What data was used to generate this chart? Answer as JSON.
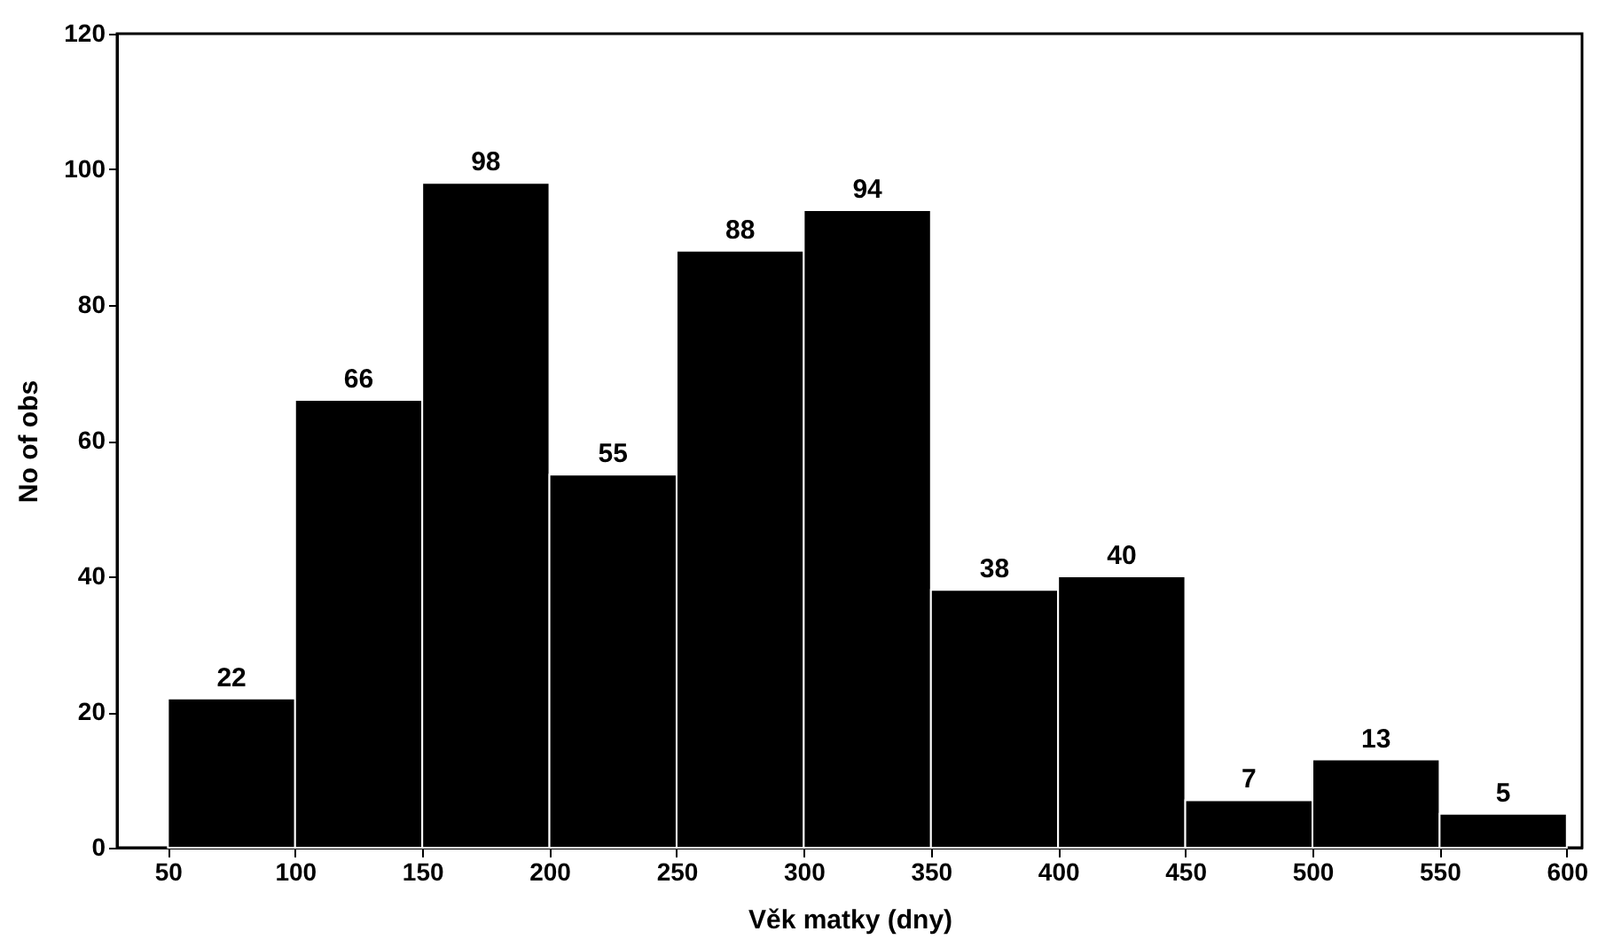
{
  "chart_data": {
    "type": "histogram",
    "xlabel": "Věk matky (dny)",
    "ylabel": "No of obs",
    "bins": [
      50,
      100,
      150,
      200,
      250,
      300,
      350,
      400,
      450,
      500,
      550,
      600
    ],
    "values": [
      22,
      66,
      98,
      55,
      88,
      94,
      38,
      40,
      7,
      13,
      5
    ],
    "color": "#000000",
    "data_labels": true,
    "grid": false,
    "xlim": [
      30,
      606
    ],
    "xticks": [
      50,
      100,
      150,
      200,
      250,
      300,
      350,
      400,
      450,
      500,
      550,
      600
    ],
    "ylim": [
      0,
      120
    ],
    "yticks": [
      0,
      20,
      40,
      60,
      80,
      100,
      120
    ]
  }
}
